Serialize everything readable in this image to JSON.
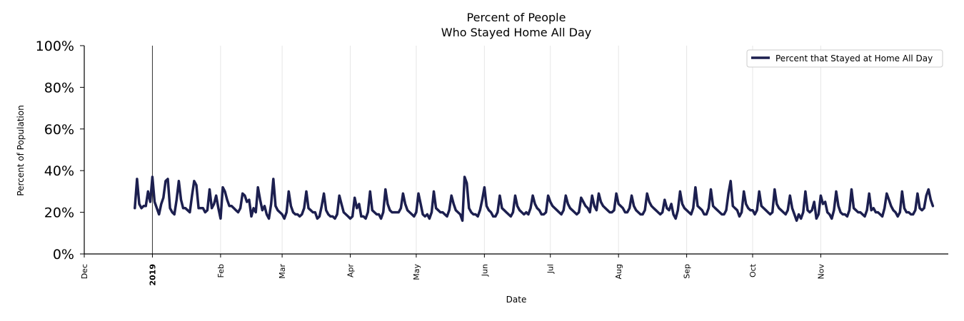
{
  "chart_data": {
    "type": "line",
    "title": [
      "Percent of People",
      "Who Stayed Home All Day"
    ],
    "xlabel": "Date",
    "ylabel": "Percent of Population",
    "ylim": [
      0,
      100
    ],
    "yticks": [
      0,
      20,
      40,
      60,
      80,
      100
    ],
    "ytick_suffix": "%",
    "xlim": [
      "2018-12-01",
      "2019-12-29"
    ],
    "xticks": [
      {
        "date": "2018-12-01",
        "label": "Dec",
        "bold": false
      },
      {
        "date": "2019-01-01",
        "label": "2019",
        "bold": true
      },
      {
        "date": "2019-02-01",
        "label": "Feb",
        "bold": false
      },
      {
        "date": "2019-03-01",
        "label": "Mar",
        "bold": false
      },
      {
        "date": "2019-04-01",
        "label": "Apr",
        "bold": false
      },
      {
        "date": "2019-05-01",
        "label": "May",
        "bold": false
      },
      {
        "date": "2019-06-01",
        "label": "Jun",
        "bold": false
      },
      {
        "date": "2019-07-01",
        "label": "Jul",
        "bold": false
      },
      {
        "date": "2019-08-01",
        "label": "Aug",
        "bold": false
      },
      {
        "date": "2019-09-01",
        "label": "Sep",
        "bold": false
      },
      {
        "date": "2019-10-01",
        "label": "Oct",
        "bold": false
      },
      {
        "date": "2019-11-01",
        "label": "Nov",
        "bold": false
      }
    ],
    "vline_date": "2019-01-01",
    "legend_position": "top-right",
    "series": [
      {
        "name": "Percent that Stayed at Home All Day",
        "color": "#1c1f4f",
        "start_date": "2018-12-24",
        "values": [
          22,
          36,
          24,
          22,
          23,
          23,
          30,
          25,
          37,
          25,
          22,
          19,
          24,
          27,
          35,
          36,
          22,
          20,
          19,
          26,
          35,
          26,
          22,
          22,
          21,
          20,
          28,
          35,
          33,
          22,
          22,
          22,
          20,
          21,
          31,
          22,
          24,
          28,
          22,
          17,
          32,
          30,
          26,
          23,
          23,
          22,
          21,
          20,
          22,
          29,
          28,
          25,
          26,
          18,
          22,
          20,
          32,
          26,
          21,
          23,
          19,
          17,
          24,
          36,
          23,
          21,
          20,
          19,
          17,
          20,
          30,
          23,
          20,
          19,
          19,
          18,
          19,
          22,
          30,
          22,
          21,
          20,
          20,
          17,
          18,
          23,
          29,
          21,
          19,
          18,
          18,
          17,
          19,
          28,
          24,
          20,
          19,
          18,
          17,
          18,
          27,
          22,
          24,
          18,
          18,
          17,
          20,
          30,
          21,
          20,
          19,
          19,
          17,
          20,
          31,
          24,
          21,
          20,
          20,
          20,
          20,
          22,
          29,
          24,
          21,
          20,
          19,
          18,
          20,
          29,
          24,
          19,
          18,
          19,
          17,
          20,
          30,
          22,
          21,
          20,
          20,
          19,
          18,
          21,
          28,
          24,
          21,
          20,
          19,
          16,
          37,
          34,
          22,
          20,
          19,
          19,
          18,
          21,
          26,
          32,
          23,
          21,
          20,
          18,
          18,
          20,
          28,
          22,
          21,
          20,
          19,
          18,
          20,
          28,
          23,
          21,
          20,
          19,
          20,
          19,
          22,
          28,
          24,
          22,
          21,
          19,
          19,
          20,
          28,
          25,
          23,
          22,
          21,
          20,
          19,
          21,
          28,
          24,
          22,
          21,
          20,
          19,
          20,
          27,
          25,
          23,
          22,
          20,
          28,
          23,
          21,
          29,
          25,
          23,
          22,
          21,
          20,
          20,
          21,
          29,
          24,
          23,
          22,
          20,
          20,
          22,
          28,
          23,
          21,
          20,
          19,
          19,
          21,
          29,
          25,
          23,
          22,
          21,
          20,
          19,
          20,
          26,
          22,
          21,
          24,
          19,
          17,
          21,
          30,
          24,
          22,
          21,
          20,
          19,
          22,
          32,
          23,
          22,
          21,
          19,
          19,
          22,
          31,
          23,
          22,
          21,
          20,
          19,
          19,
          21,
          29,
          35,
          23,
          22,
          21,
          18,
          20,
          30,
          24,
          22,
          21,
          21,
          19,
          21,
          30,
          23,
          22,
          21,
          20,
          19,
          20,
          31,
          24,
          22,
          21,
          20,
          19,
          21,
          28,
          22,
          19,
          16,
          19,
          17,
          20,
          30,
          21,
          20,
          21,
          25,
          17,
          19,
          28,
          24,
          25,
          20,
          19,
          17,
          21,
          30,
          23,
          20,
          19,
          19,
          18,
          21,
          31,
          22,
          21,
          20,
          20,
          19,
          18,
          21,
          29,
          21,
          22,
          20,
          20,
          19,
          18,
          22,
          29,
          26,
          23,
          21,
          20,
          18,
          20,
          30,
          22,
          20,
          20,
          19,
          19,
          21,
          29,
          22,
          21,
          22,
          28,
          31,
          26,
          23
        ]
      }
    ]
  }
}
